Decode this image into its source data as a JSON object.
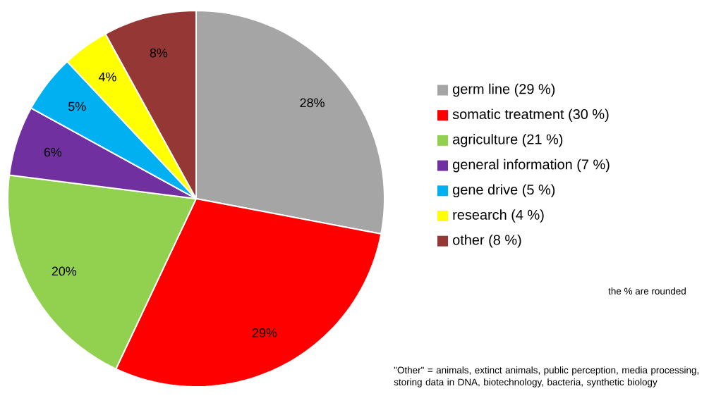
{
  "chart_data": {
    "type": "pie",
    "categories": [
      "germ line (29 %)",
      "somatic treatment (30 %)",
      "agriculture (21 %)",
      "general information (7 %)",
      "gene drive (5 %)",
      "research (4 %)",
      "other (8 %)"
    ],
    "values": [
      28,
      29,
      20,
      6,
      5,
      4,
      8
    ],
    "colors": [
      "#a5a5a5",
      "#ff0000",
      "#92d050",
      "#7030a0",
      "#00b0f0",
      "#ffff00",
      "#953735"
    ],
    "value_labels": [
      "28%",
      "29%",
      "20%",
      "6%",
      "5%",
      "4%",
      "8%"
    ],
    "legend": "right",
    "annotations": [
      "the % are rounded",
      "\"Other\" = animals, extinct animals, public perception, media processing, storing data in DNA, biotechnology, bacteria, synthetic biology"
    ]
  }
}
